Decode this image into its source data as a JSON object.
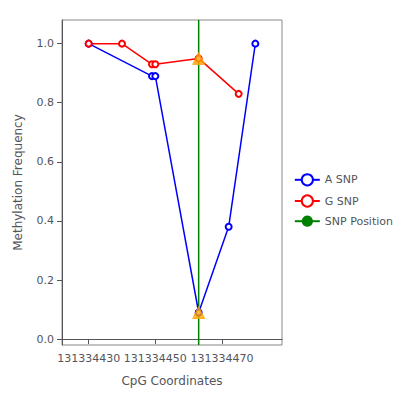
{
  "chart_data": {
    "type": "line",
    "xlabel": "CpG Coordinates",
    "ylabel": "Methylation Frequency",
    "series": [
      {
        "name": "A SNP",
        "type": "line",
        "color": "blue",
        "marker": "open_circle",
        "x": [
          131334430,
          131334449,
          131334450,
          131334463,
          131334472,
          131334480
        ],
        "values": [
          1.0,
          0.89,
          0.89,
          0.09,
          0.38,
          1.0
        ]
      },
      {
        "name": "G SNP",
        "type": "line",
        "color": "red",
        "marker": "open_circle",
        "x": [
          131334430,
          131334440,
          131334449,
          131334450,
          131334463,
          131334475
        ],
        "values": [
          1.0,
          1.0,
          0.93,
          0.93,
          0.95,
          0.83
        ]
      },
      {
        "name": "SNP Position",
        "type": "vline",
        "color": "green",
        "line_style": "solid",
        "x": 131334463
      },
      {
        "type": "scatter",
        "color": "#FFA500",
        "marker": "triangle",
        "x": [
          131334463,
          131334463
        ],
        "values": [
          0.09,
          0.95
        ]
      }
    ],
    "xlim": [
      131334422,
      131334488
    ],
    "xticks": [
      131334430,
      131334450,
      131334470
    ],
    "ylim": [
      -0.02,
      1.08
    ],
    "yticks": [
      {
        "value": 0.0,
        "label": "0.0"
      },
      0.2,
      0.4,
      0.6,
      0.8,
      {
        "value": 1.0,
        "label": "1.0"
      }
    ],
    "grid": false,
    "legend": "right"
  }
}
